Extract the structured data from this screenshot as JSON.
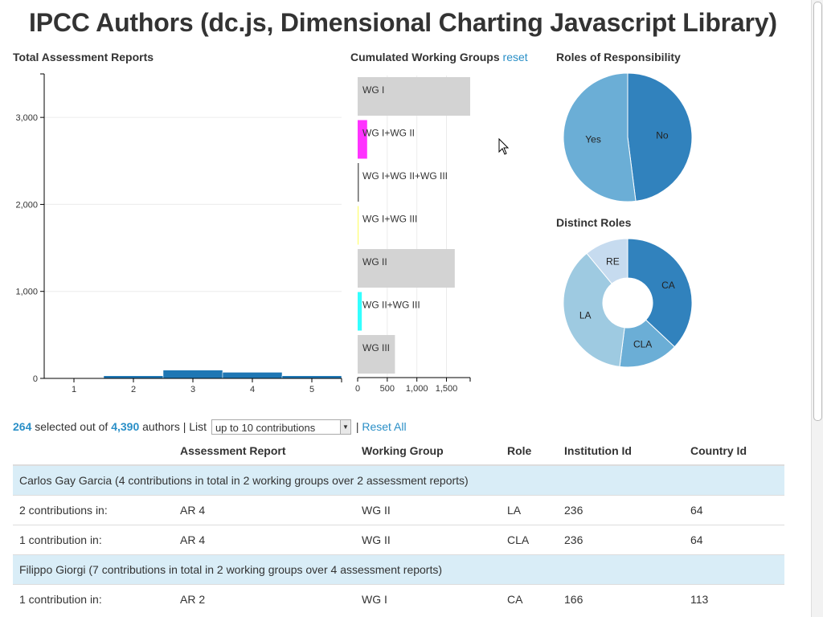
{
  "page": {
    "title": "IPCC Authors (dc.js, Dimensional Charting Javascript Library)"
  },
  "charts": {
    "assessment": {
      "title": "Total Assessment Reports"
    },
    "working_groups": {
      "title": "Cumulated Working Groups",
      "reset": "reset"
    },
    "roles_resp": {
      "title": "Roles of Responsibility"
    },
    "distinct_roles": {
      "title": "Distinct Roles"
    }
  },
  "chart_data": [
    {
      "type": "bar",
      "title": "Total Assessment Reports",
      "categories": [
        "1",
        "2",
        "3",
        "4",
        "5"
      ],
      "values": [
        0,
        30,
        95,
        70,
        30
      ],
      "x": [
        1,
        2,
        3,
        4,
        5
      ],
      "xlim": [
        0.5,
        5.5
      ],
      "ylim": [
        0,
        3500
      ],
      "yticks": [
        0,
        1000,
        2000,
        3000
      ],
      "ytick_labels": [
        "0",
        "1,000",
        "2,000",
        "3,000"
      ],
      "grid": true,
      "color": "#1f77b4"
    },
    {
      "type": "bar",
      "orientation": "horizontal",
      "title": "Cumulated Working Groups",
      "categories": [
        "WG I",
        "WG I+WG II",
        "WG I+WG II+WG III",
        "WG I+WG III",
        "WG II",
        "WG II+WG III",
        "WG III"
      ],
      "values": [
        1900,
        160,
        20,
        15,
        1640,
        70,
        630
      ],
      "colors": [
        "#d3d3d3",
        "#ff33ff",
        "#666666",
        "#ffff66",
        "#d3d3d3",
        "#33ffff",
        "#d3d3d3"
      ],
      "xlim": [
        0,
        1900
      ],
      "xticks": [
        0,
        500,
        1000,
        1500
      ],
      "xtick_labels": [
        "0",
        "500",
        "1,000",
        "1,500"
      ],
      "grid": true
    },
    {
      "type": "pie",
      "title": "Roles of Responsibility",
      "labels": [
        "No",
        "Yes"
      ],
      "values": [
        48,
        52
      ],
      "colors": [
        "#3182bd",
        "#6baed6"
      ]
    },
    {
      "type": "pie",
      "title": "Distinct Roles",
      "labels": [
        "CA",
        "CLA",
        "LA",
        "RE"
      ],
      "values": [
        37,
        15,
        37,
        11
      ],
      "colors": [
        "#3182bd",
        "#6baed6",
        "#9ecae1",
        "#c6dbef"
      ],
      "donut": true
    }
  ],
  "summary": {
    "selected": "264",
    "selected_text": "selected out of",
    "total": "4,390",
    "authors_text": "authors | List",
    "list_value": "up to 10 contributions",
    "reset_all": "Reset All"
  },
  "table": {
    "headers": [
      "",
      "Assessment Report",
      "Working Group",
      "Role",
      "Institution Id",
      "Country Id"
    ],
    "rows": [
      {
        "group": "Carlos Gay Garcia (4 contributions in total in 2 working groups over 2 assessment reports)"
      },
      {
        "cells": [
          "2 contributions in:",
          "AR 4",
          "WG II",
          "LA",
          "236",
          "64"
        ]
      },
      {
        "cells": [
          "1 contribution in:",
          "AR 4",
          "WG II",
          "CLA",
          "236",
          "64"
        ]
      },
      {
        "group": "Filippo Giorgi (7 contributions in total in 2 working groups over 4 assessment reports)"
      },
      {
        "cells": [
          "1 contribution in:",
          "AR 2",
          "WG I",
          "CA",
          "166",
          "113"
        ]
      }
    ]
  }
}
